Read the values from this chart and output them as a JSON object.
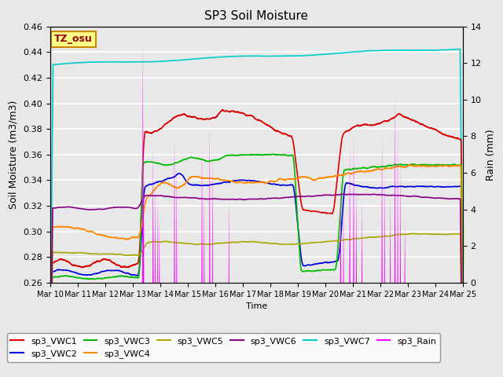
{
  "title": "SP3 Soil Moisture",
  "xlabel": "Time",
  "ylabel_left": "Soil Moisture (m3/m3)",
  "ylabel_right": "Rain (mm)",
  "xlim": [
    0,
    15
  ],
  "ylim_left": [
    0.26,
    0.46
  ],
  "ylim_right": [
    0,
    14
  ],
  "xtick_labels": [
    "Mar 10",
    "Mar 11",
    "Mar 12",
    "Mar 13",
    "Mar 14",
    "Mar 15",
    "Mar 16",
    "Mar 17",
    "Mar 18",
    "Mar 19",
    "Mar 20",
    "Mar 21",
    "Mar 22",
    "Mar 23",
    "Mar 24",
    "Mar 25"
  ],
  "ytick_left": [
    0.26,
    0.28,
    0.3,
    0.32,
    0.34,
    0.36,
    0.38,
    0.4,
    0.42,
    0.44,
    0.46
  ],
  "ytick_right": [
    0,
    2,
    4,
    6,
    8,
    10,
    12,
    14
  ],
  "colors": {
    "VWC1": "#dd0000",
    "VWC2": "#0000dd",
    "VWC3": "#00bb00",
    "VWC4": "#ff8800",
    "VWC5": "#aaaa00",
    "VWC6": "#880088",
    "VWC7": "#00cccc",
    "Rain": "#ff00ff"
  },
  "legend_labels": [
    "sp3_VWC1",
    "sp3_VWC2",
    "sp3_VWC3",
    "sp3_VWC4",
    "sp3_VWC5",
    "sp3_VWC6",
    "sp3_VWC7",
    "sp3_Rain"
  ],
  "tz_label": "TZ_osu",
  "bg_color": "#e8e8e8",
  "fig_color": "#e8e8e8",
  "grid_color": "#ffffff"
}
